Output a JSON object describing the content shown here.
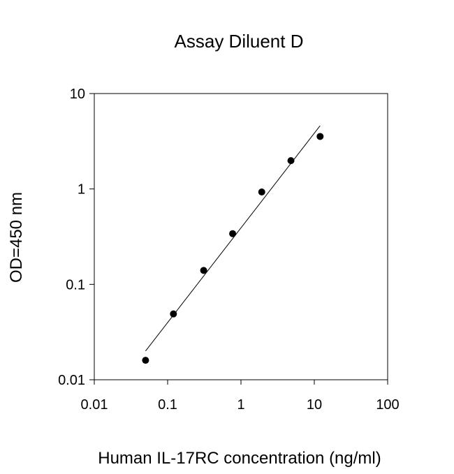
{
  "chart_data": {
    "type": "scatter",
    "title": "Assay Diluent D",
    "xlabel": "Human IL-17RC concentration (ng/ml)",
    "ylabel": "OD=450 nm",
    "x_scale": "log",
    "y_scale": "log",
    "xlim": [
      0.01,
      100
    ],
    "ylim": [
      0.01,
      10
    ],
    "x_ticks": [
      "0.01",
      "0.1",
      "1",
      "10",
      "100"
    ],
    "y_ticks": [
      "0.01",
      "0.1",
      "1",
      "10"
    ],
    "grid": false,
    "legend": "none",
    "series": [
      {
        "x": [
          0.05,
          0.12,
          0.31,
          0.77,
          1.92,
          4.8,
          12.0
        ],
        "y": [
          0.016,
          0.049,
          0.14,
          0.34,
          0.93,
          1.98,
          3.55
        ]
      }
    ],
    "fit_line": {
      "x": [
        0.05,
        12.0
      ],
      "y": [
        0.02,
        4.6
      ]
    },
    "colors": {
      "points": "#000000",
      "line": "#000000",
      "axes": "#000000",
      "background": "#ffffff"
    }
  }
}
